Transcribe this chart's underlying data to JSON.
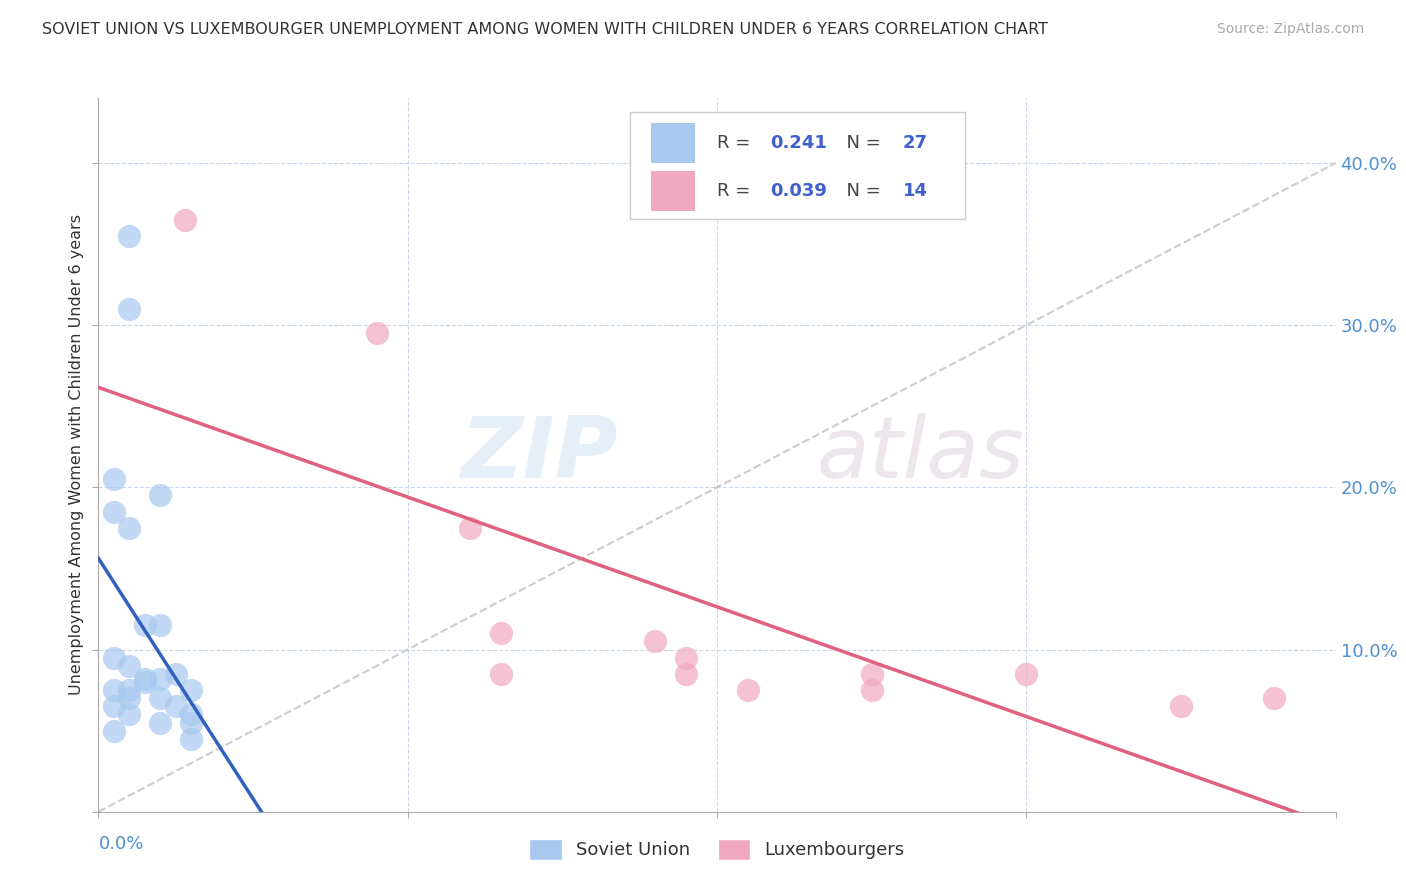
{
  "title": "SOVIET UNION VS LUXEMBOURGER UNEMPLOYMENT AMONG WOMEN WITH CHILDREN UNDER 6 YEARS CORRELATION CHART",
  "source": "Source: ZipAtlas.com",
  "ylabel": "Unemployment Among Women with Children Under 6 years",
  "xlim": [
    0.0,
    0.04
  ],
  "ylim": [
    0.0,
    0.44
  ],
  "yticks": [
    0.0,
    0.1,
    0.2,
    0.3,
    0.4
  ],
  "ytick_labels": [
    "",
    "10.0%",
    "20.0%",
    "30.0%",
    "40.0%"
  ],
  "soviet_R": "0.241",
  "soviet_N": "27",
  "lux_R": "0.039",
  "lux_N": "14",
  "soviet_color": "#a8c8f0",
  "lux_color": "#f0a8c0",
  "soviet_line_color": "#3060c0",
  "lux_line_color": "#e06080",
  "diagonal_color": "#c0c0c0",
  "watermark_zip": "ZIP",
  "watermark_atlas": "atlas",
  "background_color": "#ffffff",
  "legend_R_color": "#4060d0",
  "soviet_scatter_x": [
    0.001,
    0.001,
    0.002,
    0.0005,
    0.0005,
    0.001,
    0.0015,
    0.002,
    0.0025,
    0.003,
    0.0005,
    0.001,
    0.0015,
    0.002,
    0.0025,
    0.003,
    0.001,
    0.002,
    0.003,
    0.0005,
    0.001,
    0.0015,
    0.0005,
    0.001,
    0.0005,
    0.002,
    0.003
  ],
  "soviet_scatter_y": [
    0.355,
    0.31,
    0.195,
    0.205,
    0.185,
    0.175,
    0.115,
    0.115,
    0.085,
    0.075,
    0.095,
    0.09,
    0.082,
    0.082,
    0.065,
    0.06,
    0.075,
    0.07,
    0.055,
    0.075,
    0.07,
    0.08,
    0.065,
    0.06,
    0.05,
    0.055,
    0.045
  ],
  "lux_scatter_x": [
    0.0028,
    0.009,
    0.012,
    0.013,
    0.013,
    0.018,
    0.019,
    0.019,
    0.021,
    0.025,
    0.025,
    0.03,
    0.035,
    0.038
  ],
  "lux_scatter_y": [
    0.365,
    0.295,
    0.175,
    0.11,
    0.085,
    0.105,
    0.085,
    0.095,
    0.075,
    0.085,
    0.075,
    0.085,
    0.065,
    0.07
  ]
}
